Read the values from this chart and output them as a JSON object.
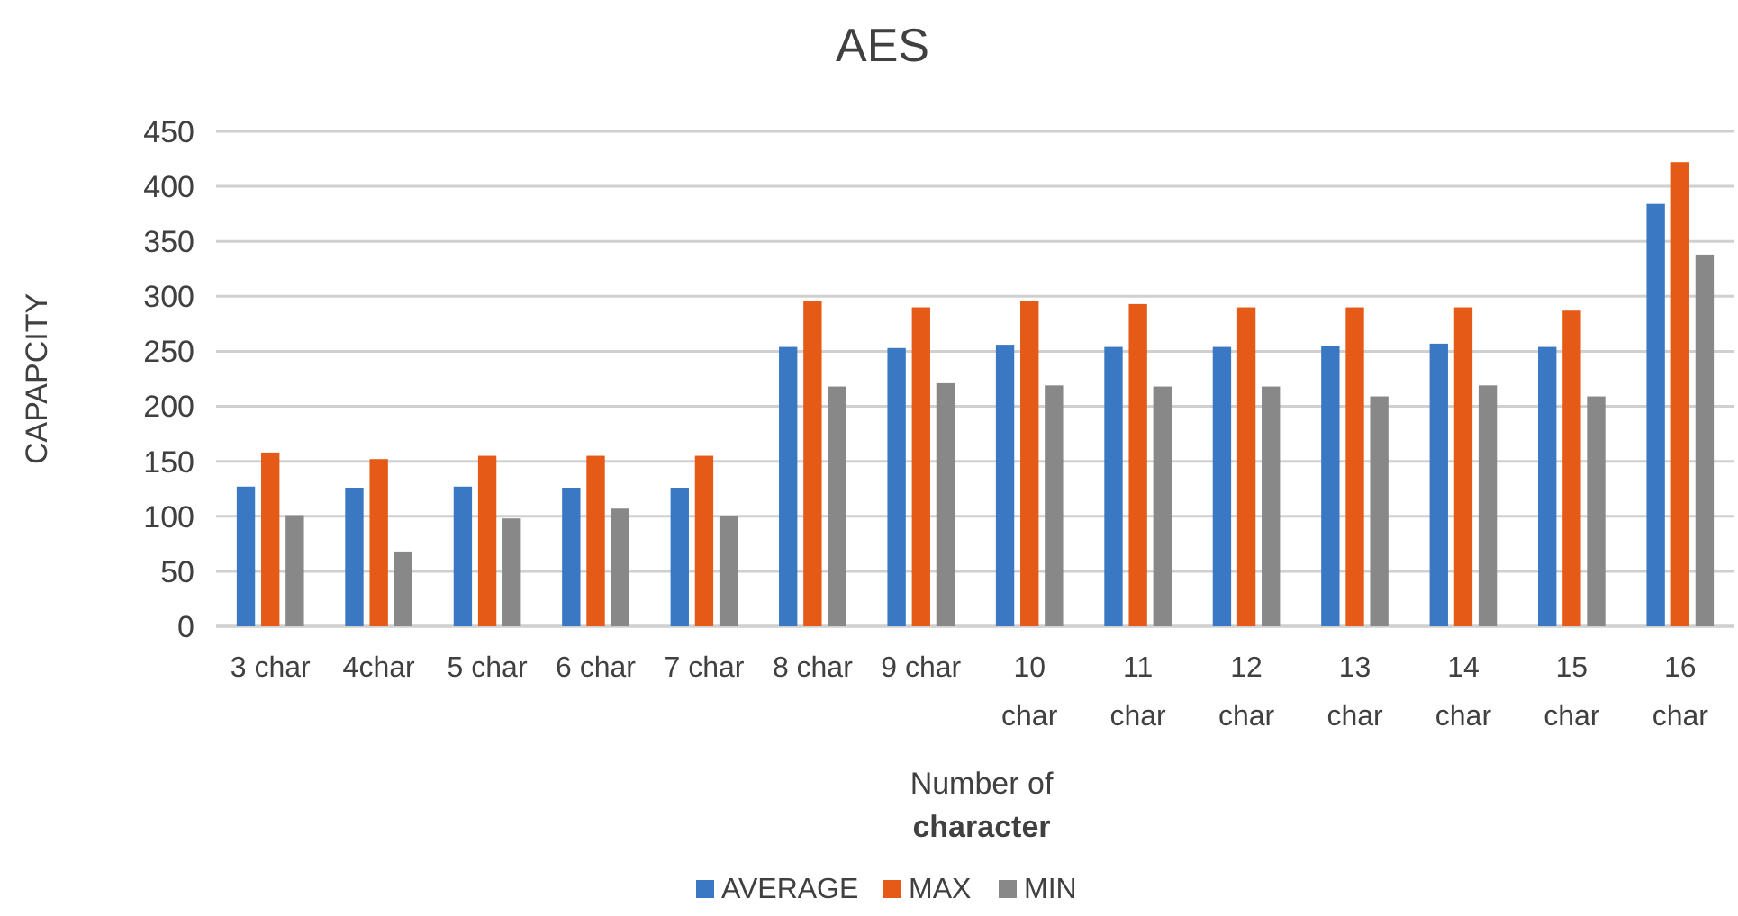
{
  "chart_data": {
    "type": "bar",
    "title": "AES",
    "xlabel": "Number of character",
    "ylabel": "CAPAPCITY",
    "categories": [
      "3 char",
      "4char",
      "5 char",
      "6 char",
      "7 char",
      "8 char",
      "9 char",
      "10 char",
      "11 char",
      "12 char",
      "13 char",
      "14 char",
      "15 char",
      "16 char"
    ],
    "series": [
      {
        "name": "AVERAGE",
        "color": "#3a78c3",
        "values": [
          127,
          126,
          127,
          126,
          126,
          254,
          253,
          256,
          254,
          254,
          255,
          257,
          254,
          384
        ]
      },
      {
        "name": "MAX",
        "color": "#e55a17",
        "values": [
          158,
          152,
          155,
          155,
          155,
          296,
          290,
          296,
          293,
          290,
          290,
          290,
          287,
          422
        ]
      },
      {
        "name": "MIN",
        "color": "#888888",
        "values": [
          101,
          68,
          98,
          107,
          100,
          218,
          221,
          219,
          218,
          218,
          209,
          219,
          209,
          338
        ]
      }
    ],
    "ylim": [
      0,
      450
    ],
    "yticks": [
      0,
      50,
      100,
      150,
      200,
      250,
      300,
      350,
      400,
      450
    ],
    "grid": "y",
    "legend": "bottom"
  }
}
